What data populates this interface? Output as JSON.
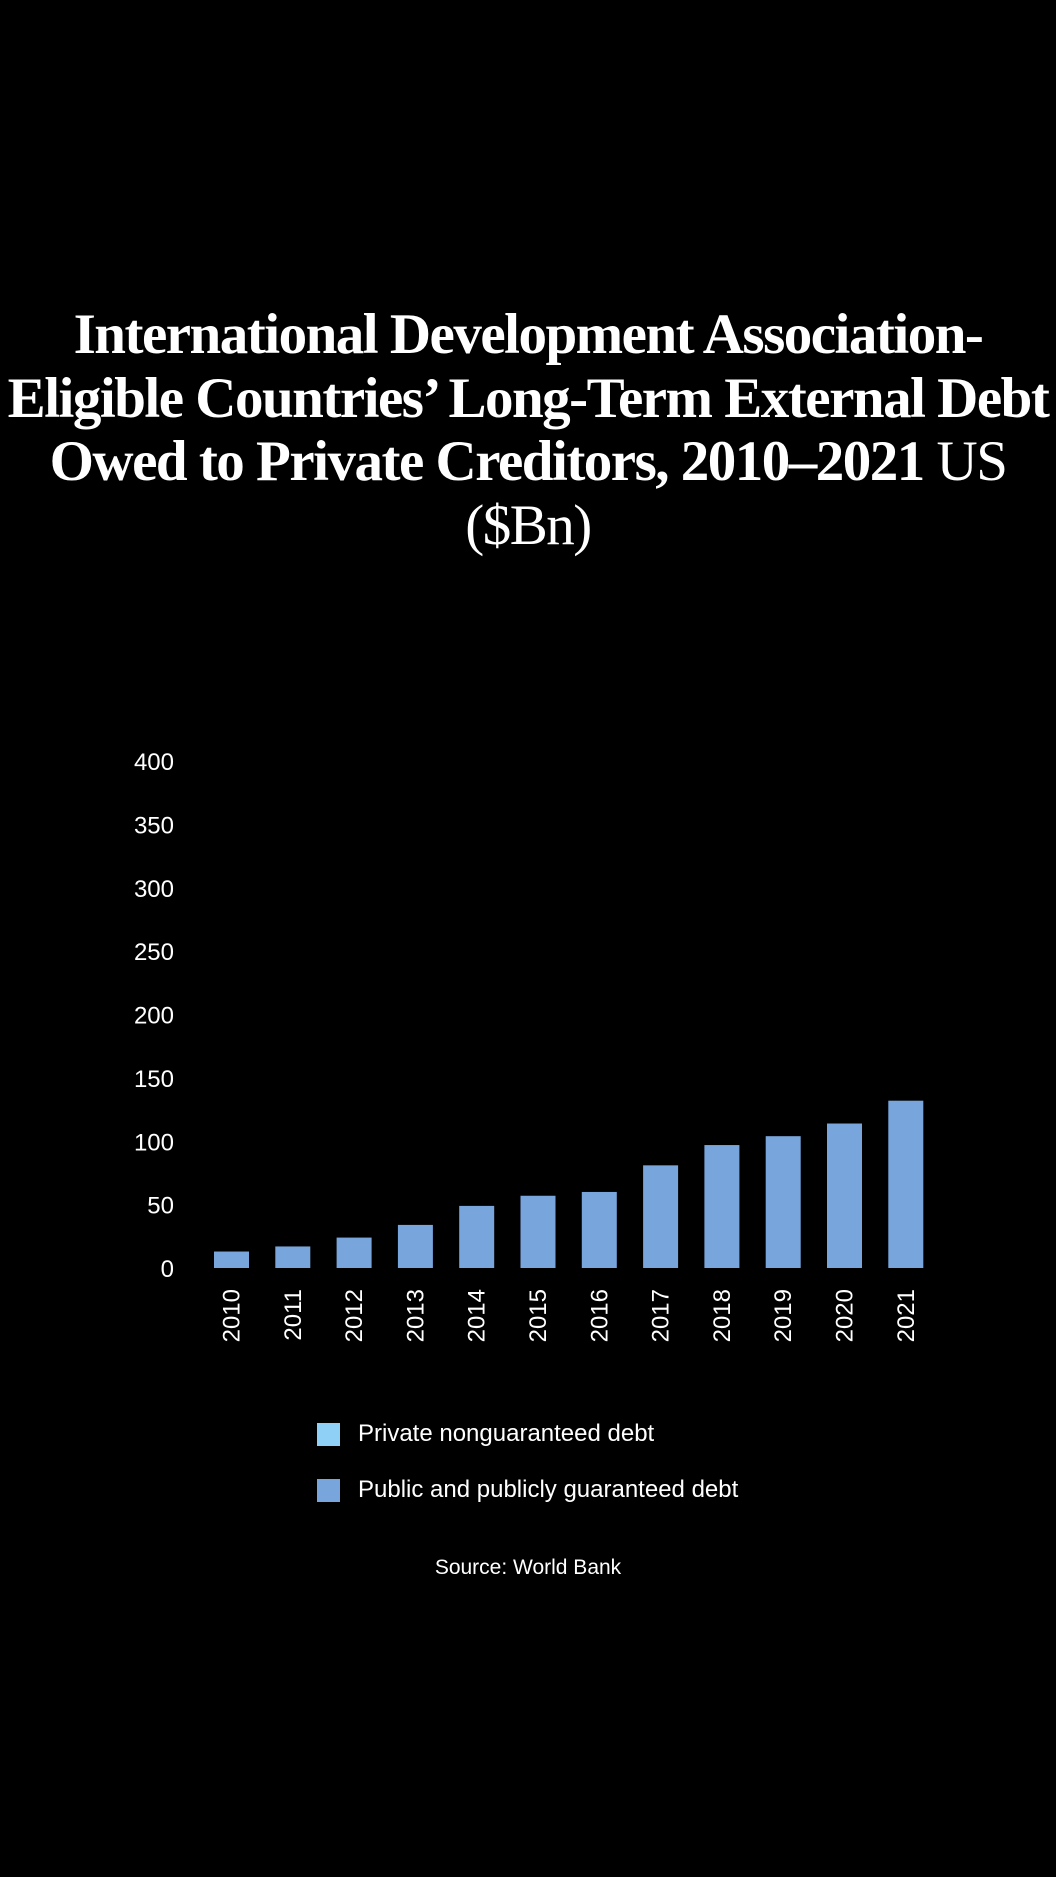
{
  "title": {
    "main": "International Development Association-Eligible Countries’ Long-Term External Debt Owed to Private Creditors, 2010–2021",
    "unit": "US ($Bn)"
  },
  "source": "Source: World Bank",
  "chart_data": {
    "type": "bar",
    "stacked": true,
    "title": "International Development Association-Eligible Countries’ Long-Term External Debt Owed to Private Creditors, 2010–2021 US ($Bn)",
    "xlabel": "",
    "ylabel": "",
    "ylim": [
      0,
      400
    ],
    "yticks": [
      "0",
      "50",
      "100",
      "150",
      "200",
      "250",
      "300",
      "350",
      "400"
    ],
    "categories": [
      "2010",
      "2011",
      "2012",
      "2013",
      "2014",
      "2015",
      "2016",
      "2017",
      "2018",
      "2019",
      "2020",
      "2021"
    ],
    "grid": false,
    "legend_position": "bottom",
    "series": [
      {
        "name": "Private nonguaranteed debt",
        "color": "#8fd0f7",
        "values": [
          0,
          0,
          0,
          0,
          0,
          0,
          0,
          0,
          0,
          0,
          0,
          0
        ]
      },
      {
        "name": "Public and publicly guaranteed debt",
        "color": "#77a5dc",
        "values": [
          13,
          17,
          24,
          34,
          49,
          57,
          60,
          81,
          97,
          104,
          114,
          132
        ]
      }
    ]
  }
}
